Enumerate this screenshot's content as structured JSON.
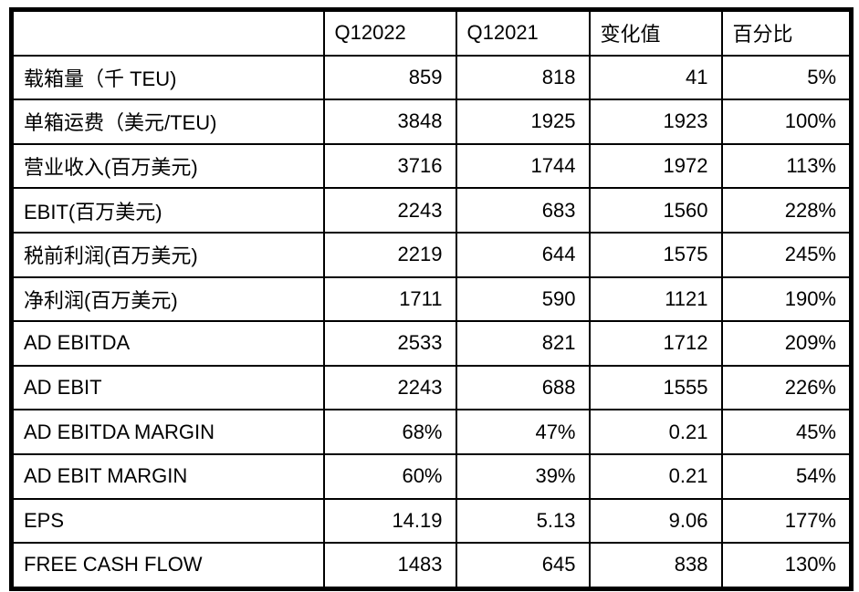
{
  "chart_data": {
    "type": "table",
    "columns": [
      "",
      "Q12022",
      "Q12021",
      "变化值",
      "百分比"
    ],
    "rows": [
      {
        "label": "载箱量（千 TEU)",
        "values": [
          "859",
          "818",
          "41",
          "5%"
        ]
      },
      {
        "label": "单箱运费（美元/TEU)",
        "values": [
          "3848",
          "1925",
          "1923",
          "100%"
        ]
      },
      {
        "label": "营业收入(百万美元)",
        "values": [
          "3716",
          "1744",
          "1972",
          "113%"
        ]
      },
      {
        "label": "EBIT(百万美元)",
        "values": [
          "2243",
          "683",
          "1560",
          "228%"
        ]
      },
      {
        "label": "税前利润(百万美元)",
        "values": [
          "2219",
          "644",
          "1575",
          "245%"
        ]
      },
      {
        "label": "净利润(百万美元)",
        "values": [
          "1711",
          "590",
          "1121",
          "190%"
        ]
      },
      {
        "label": "AD EBITDA",
        "values": [
          "2533",
          "821",
          "1712",
          "209%"
        ]
      },
      {
        "label": "AD EBIT",
        "values": [
          "2243",
          "688",
          "1555",
          "226%"
        ]
      },
      {
        "label": "AD EBITDA MARGIN",
        "values": [
          "68%",
          "47%",
          "0.21",
          "45%"
        ]
      },
      {
        "label": "AD EBIT MARGIN",
        "values": [
          "60%",
          "39%",
          "0.21",
          "54%"
        ]
      },
      {
        "label": "EPS",
        "values": [
          "14.19",
          "5.13",
          "9.06",
          "177%"
        ]
      },
      {
        "label": "FREE CASH FLOW",
        "values": [
          "1483",
          "645",
          "838",
          "130%"
        ]
      }
    ]
  },
  "colors": {
    "border": "#000000",
    "text": "#000000",
    "background": "#ffffff"
  }
}
